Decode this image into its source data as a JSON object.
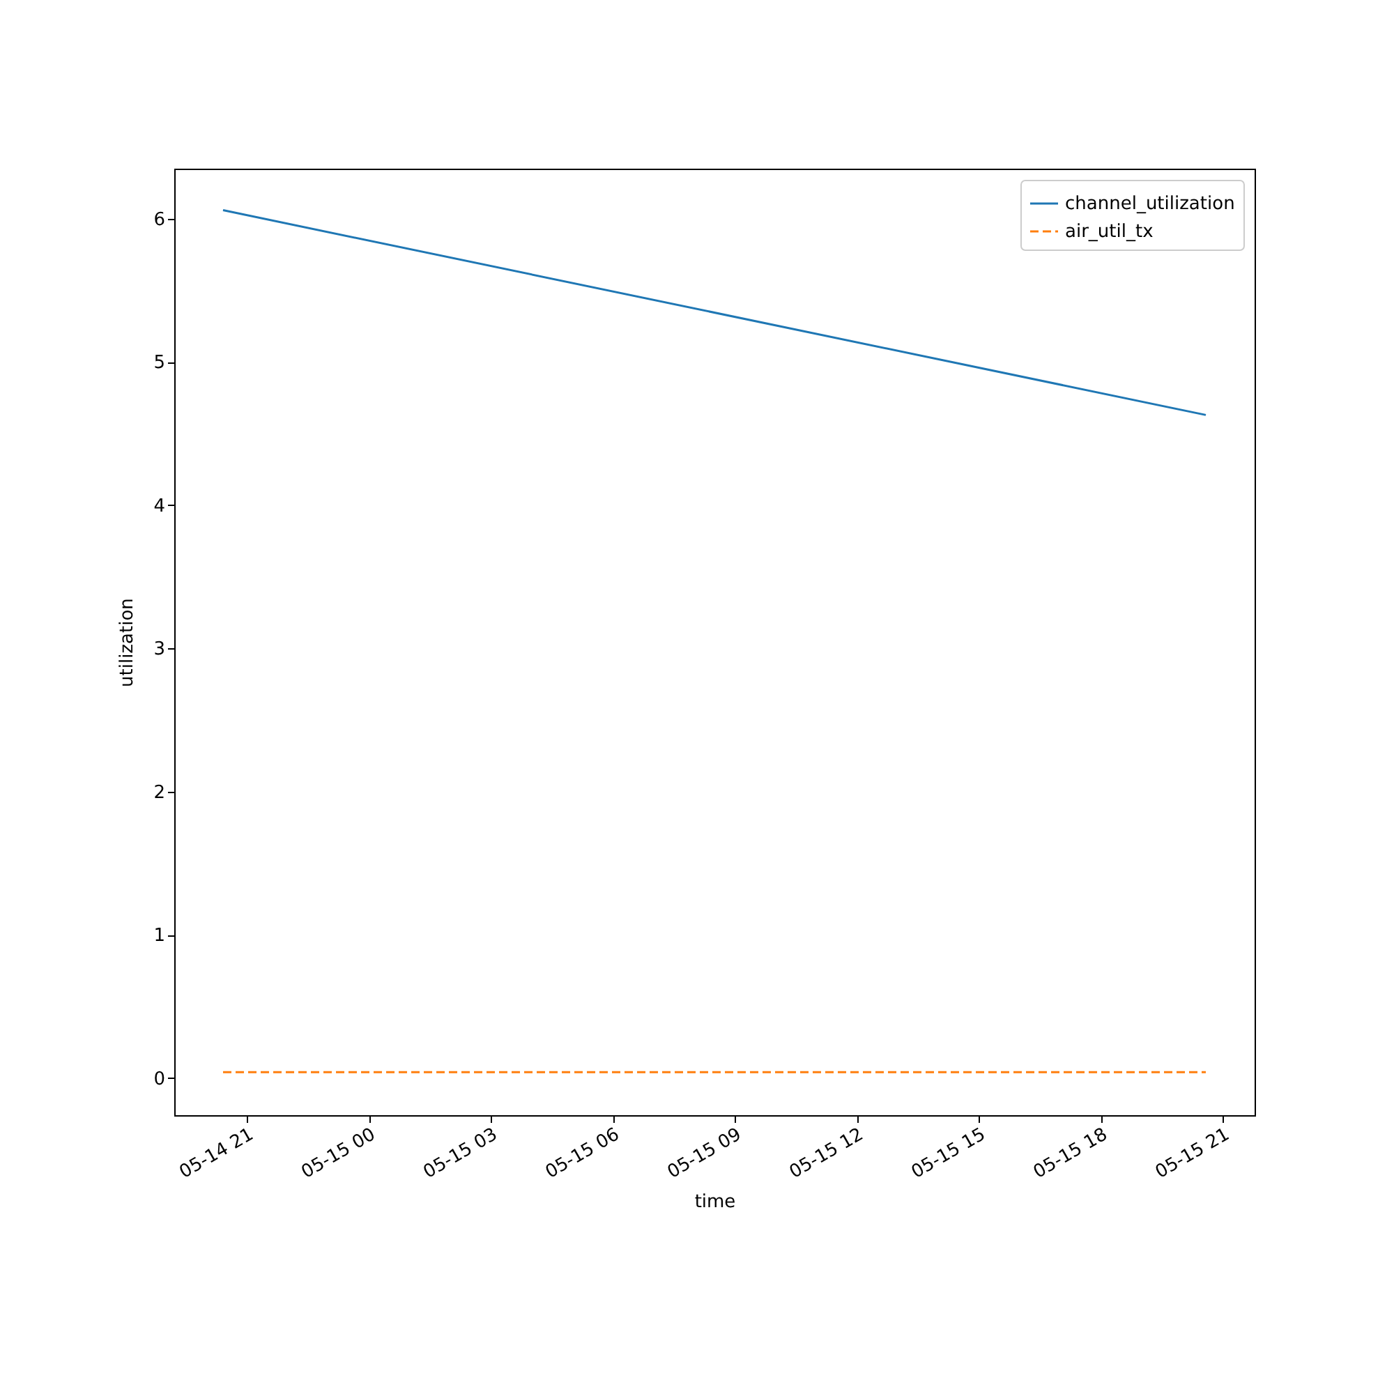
{
  "chart_data": {
    "type": "line",
    "xlabel": "time",
    "ylabel": "utilization",
    "x": [
      "--05-14T20:25",
      "--05-15T20:35"
    ],
    "series": [
      {
        "name": "channel_utilization",
        "color": "#1f77b4",
        "line_style": "solid",
        "values": [
          6.06,
          4.63
        ]
      },
      {
        "name": "air_util_tx",
        "color": "#ff7f0e",
        "line_style": "dashed",
        "values": [
          0.04,
          0.04
        ]
      }
    ],
    "xlim": [
      "--05-14T19:13",
      "--05-15T21:47"
    ],
    "ylim": [
      -0.26,
      6.35
    ],
    "xticks": [
      {
        "value": "--05-14T21:00",
        "label": "05-14 21"
      },
      {
        "value": "--05-15T00:00",
        "label": "05-15 00"
      },
      {
        "value": "--05-15T03:00",
        "label": "05-15 03"
      },
      {
        "value": "--05-15T06:00",
        "label": "05-15 06"
      },
      {
        "value": "--05-15T09:00",
        "label": "05-15 09"
      },
      {
        "value": "--05-15T12:00",
        "label": "05-15 12"
      },
      {
        "value": "--05-15T15:00",
        "label": "05-15 15"
      },
      {
        "value": "--05-15T18:00",
        "label": "05-15 18"
      },
      {
        "value": "--05-15T21:00",
        "label": "05-15 21"
      }
    ],
    "yticks": [
      0,
      1,
      2,
      3,
      4,
      5,
      6
    ],
    "grid": false,
    "legend": "top right",
    "marker": "none"
  }
}
